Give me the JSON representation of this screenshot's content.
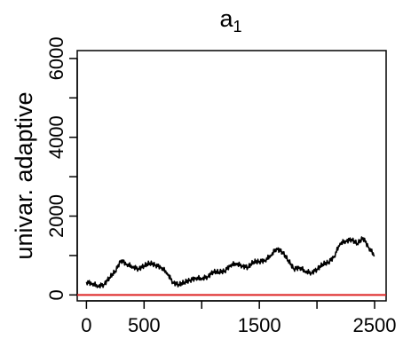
{
  "chart_data": {
    "type": "line",
    "title": {
      "base": "a",
      "subscript": "1"
    },
    "xlabel": "",
    "ylabel": "univar. adaptive",
    "xlim": [
      -80,
      2600
    ],
    "ylim": [
      -150,
      6200
    ],
    "x_ticks": [
      0,
      500,
      1000,
      1500,
      2000,
      2500
    ],
    "x_tick_labels": [
      "0",
      "500",
      "",
      "1500",
      "",
      "2500"
    ],
    "y_ticks": [
      0,
      1000,
      2000,
      3000,
      4000,
      5000,
      6000
    ],
    "y_tick_labels": [
      "0",
      "",
      "2000",
      "",
      "4000",
      "",
      "6000"
    ],
    "grid": false,
    "series": [
      {
        "color": "#000000",
        "x": [
          0,
          50,
          100,
          150,
          200,
          250,
          300,
          350,
          400,
          450,
          500,
          550,
          600,
          650,
          700,
          750,
          800,
          850,
          900,
          950,
          1000,
          1050,
          1100,
          1150,
          1200,
          1250,
          1300,
          1350,
          1400,
          1450,
          1500,
          1550,
          1600,
          1650,
          1700,
          1750,
          1800,
          1850,
          1900,
          1950,
          2000,
          2050,
          2100,
          2150,
          2200,
          2250,
          2300,
          2350,
          2400,
          2450,
          2500
        ],
        "values": [
          330,
          290,
          230,
          260,
          440,
          600,
          880,
          780,
          720,
          660,
          740,
          810,
          760,
          700,
          560,
          320,
          260,
          320,
          380,
          430,
          420,
          460,
          590,
          580,
          610,
          760,
          800,
          740,
          700,
          840,
          850,
          880,
          1010,
          1180,
          1090,
          880,
          660,
          700,
          600,
          560,
          650,
          780,
          830,
          980,
          1310,
          1370,
          1410,
          1300,
          1450,
          1200,
          1000
        ]
      },
      {
        "color": "#dd2222",
        "type": "hline",
        "values": [
          0
        ]
      }
    ]
  }
}
